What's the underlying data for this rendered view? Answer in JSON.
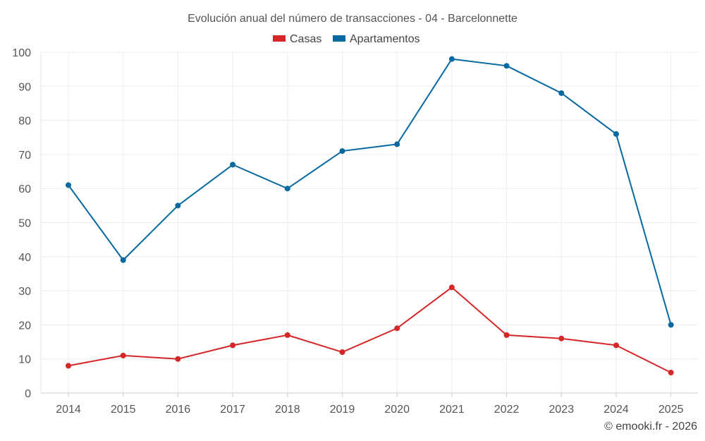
{
  "chart_data": {
    "type": "line",
    "title": "Evolución anual del número de transacciones - 04 - Barcelonnette",
    "categories": [
      "2014",
      "2015",
      "2016",
      "2017",
      "2018",
      "2019",
      "2020",
      "2021",
      "2022",
      "2023",
      "2024",
      "2025"
    ],
    "series": [
      {
        "name": "Casas",
        "color": "#d62728",
        "values": [
          8,
          11,
          10,
          14,
          17,
          12,
          19,
          31,
          17,
          16,
          14,
          6
        ]
      },
      {
        "name": "Apartamentos",
        "color": "#06699f",
        "values": [
          61,
          39,
          55,
          67,
          60,
          71,
          73,
          98,
          96,
          88,
          76,
          20
        ]
      }
    ],
    "ylim": [
      0,
      100
    ],
    "yticks": [
      0,
      10,
      20,
      30,
      40,
      50,
      60,
      70,
      80,
      90,
      100
    ],
    "xlabel": "",
    "ylabel": "",
    "grid": true,
    "legend_position": "top-center"
  },
  "credit": "© emooki.fr - 2026"
}
